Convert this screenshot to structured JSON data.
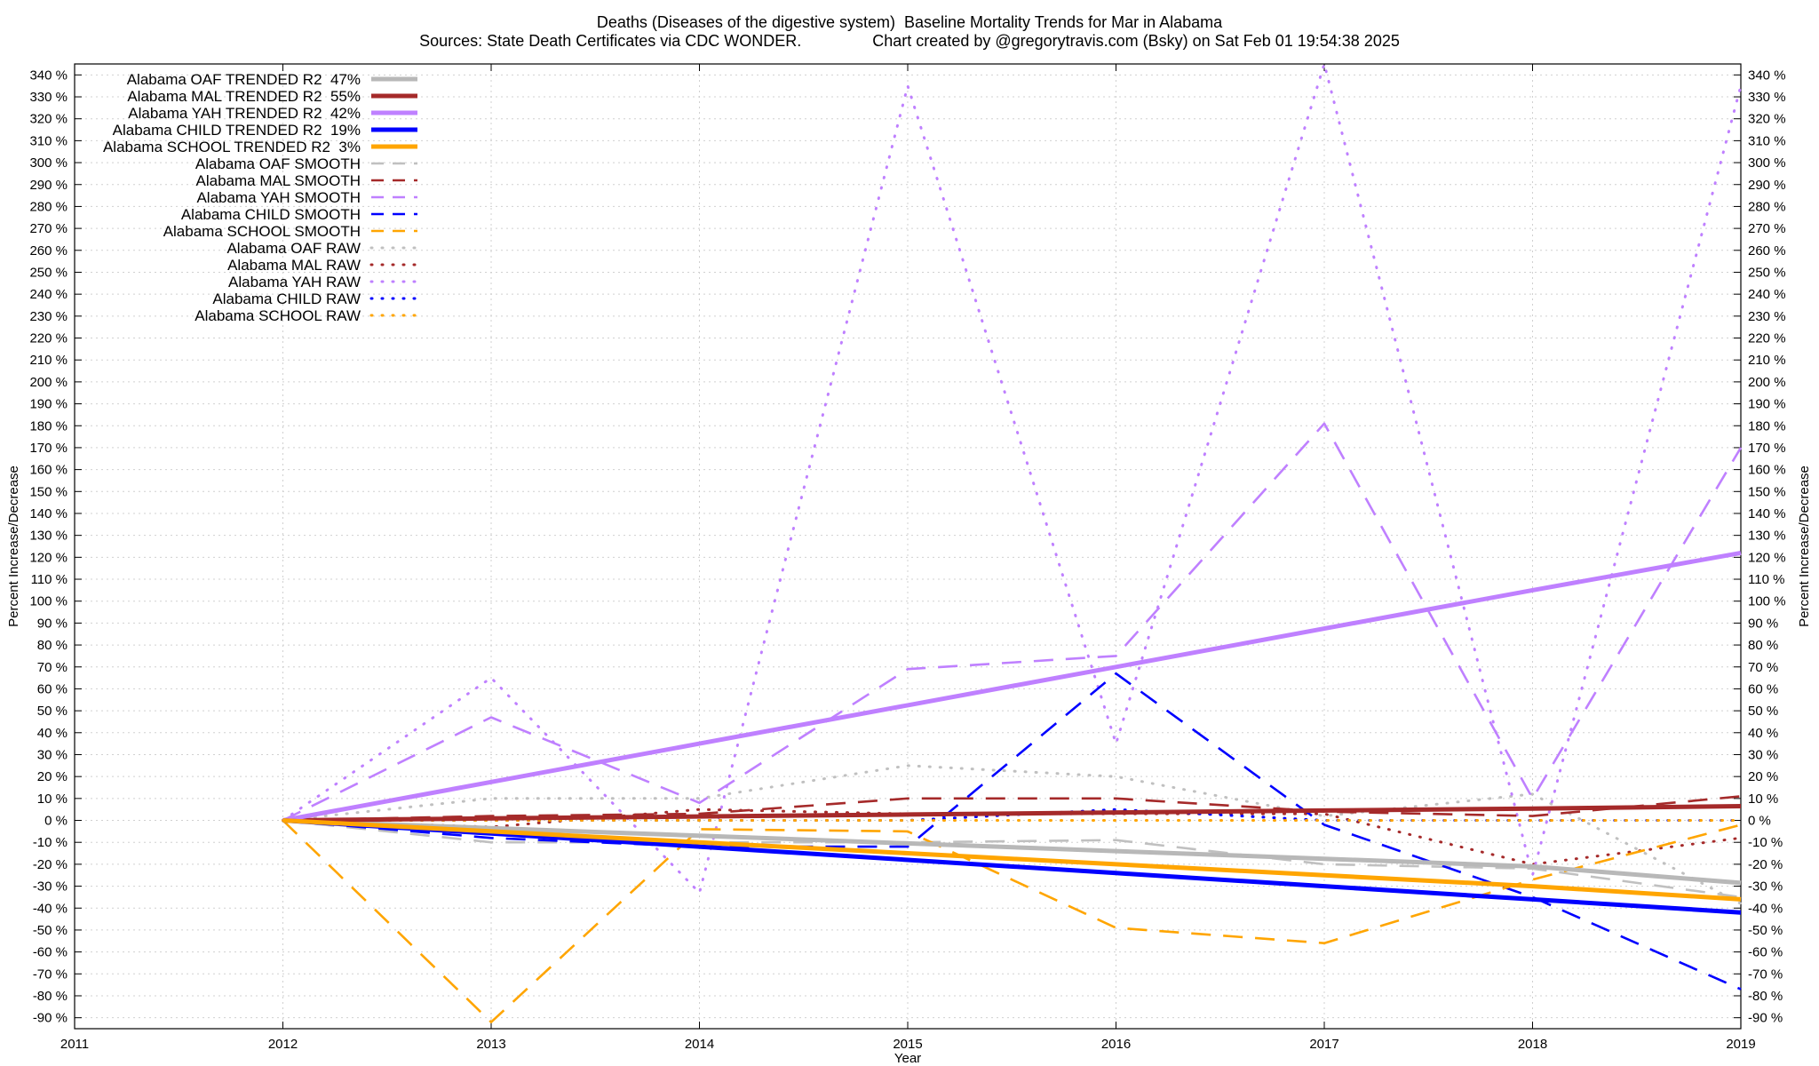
{
  "chart_data": {
    "type": "line",
    "title": "Deaths (Diseases of the digestive system)  Baseline Mortality Trends for Mar in Alabama",
    "subtitle": "Sources: State Death Certificates via CDC WONDER.                Chart created by @gregorytravis.com (Bsky) on Sat Feb 01 19:54:38 2025",
    "xlabel": "Year",
    "ylabel": "Percent Increase/Decrease",
    "y2label": "Percent Increase/Decrease",
    "xlim": [
      2011,
      2019
    ],
    "ylim": [
      -95,
      345
    ],
    "x_ticks": [
      2011,
      2012,
      2013,
      2014,
      2015,
      2016,
      2017,
      2018,
      2019
    ],
    "y_ticks": [
      -90,
      -80,
      -70,
      -60,
      -50,
      -40,
      -30,
      -20,
      -10,
      0,
      10,
      20,
      30,
      40,
      50,
      60,
      70,
      80,
      90,
      100,
      110,
      120,
      130,
      140,
      150,
      160,
      170,
      180,
      190,
      200,
      210,
      220,
      230,
      240,
      250,
      260,
      270,
      280,
      290,
      300,
      310,
      320,
      330,
      340
    ],
    "y_tick_suffix": " %",
    "grid": true,
    "legend_position": "top-left",
    "x": [
      2012,
      2013,
      2014,
      2015,
      2016,
      2017,
      2018,
      2019
    ],
    "series": [
      {
        "name": "Alabama OAF TRENDED R2  47%",
        "style": "trend",
        "color": "#b8b8b8",
        "values": [
          0,
          -3.5,
          -7,
          -10.5,
          -14,
          -17.5,
          -21,
          -28.5
        ]
      },
      {
        "name": "Alabama MAL TRENDED R2  55%",
        "style": "trend",
        "color": "#a52a2a",
        "values": [
          0,
          0.9,
          1.8,
          2.7,
          3.6,
          4.5,
          5.4,
          6.5
        ]
      },
      {
        "name": "Alabama YAH TRENDED R2  42%",
        "style": "trend",
        "color": "#bf80ff",
        "values": [
          0,
          17.5,
          35,
          52.5,
          70,
          87.5,
          105,
          122
        ]
      },
      {
        "name": "Alabama CHILD TRENDED R2  19%",
        "style": "trend",
        "color": "#0000ff",
        "values": [
          0,
          -6,
          -12,
          -18,
          -24,
          -30,
          -36,
          -42
        ]
      },
      {
        "name": "Alabama SCHOOL TRENDED R2  3%",
        "style": "trend",
        "color": "#ffa500",
        "values": [
          0,
          -5,
          -10,
          -15,
          -20,
          -25,
          -30,
          -36
        ]
      },
      {
        "name": "Alabama OAF SMOOTH",
        "style": "smooth",
        "color": "#c0c0c0",
        "values": [
          0,
          -10,
          -10,
          -10,
          -9,
          -20,
          -22,
          -35
        ]
      },
      {
        "name": "Alabama MAL SMOOTH",
        "style": "smooth",
        "color": "#a52a2a",
        "values": [
          0,
          2,
          3,
          10,
          10,
          4,
          2,
          11
        ]
      },
      {
        "name": "Alabama YAH SMOOTH",
        "style": "smooth",
        "color": "#bf80ff",
        "values": [
          0,
          47,
          8,
          69,
          75,
          181,
          10,
          170
        ]
      },
      {
        "name": "Alabama CHILD SMOOTH",
        "style": "smooth",
        "color": "#0000ff",
        "values": [
          0,
          -8,
          -12,
          -12,
          67,
          -2,
          -35,
          -77
        ]
      },
      {
        "name": "Alabama SCHOOL SMOOTH",
        "style": "smooth",
        "color": "#ffa500",
        "values": [
          0,
          -92,
          -4,
          -5,
          -49,
          -56,
          -27,
          -2
        ]
      },
      {
        "name": "Alabama OAF RAW",
        "style": "raw",
        "color": "#c0c0c0",
        "values": [
          0,
          10,
          10,
          25,
          20,
          2,
          12,
          -38
        ]
      },
      {
        "name": "Alabama MAL RAW",
        "style": "raw",
        "color": "#a52a2a",
        "values": [
          0,
          -3,
          5,
          3,
          3,
          3,
          -20,
          -8
        ]
      },
      {
        "name": "Alabama YAH RAW",
        "style": "raw",
        "color": "#bf80ff",
        "values": [
          0,
          65,
          -33,
          335,
          35,
          345,
          -25,
          335
        ]
      },
      {
        "name": "Alabama CHILD RAW",
        "style": "raw",
        "color": "#0000ff",
        "values": [
          0,
          0,
          0,
          0,
          5,
          0,
          0,
          0
        ]
      },
      {
        "name": "Alabama SCHOOL RAW",
        "style": "raw",
        "color": "#ffa500",
        "values": [
          0,
          0,
          0,
          0,
          0,
          0,
          0,
          0
        ]
      }
    ]
  }
}
